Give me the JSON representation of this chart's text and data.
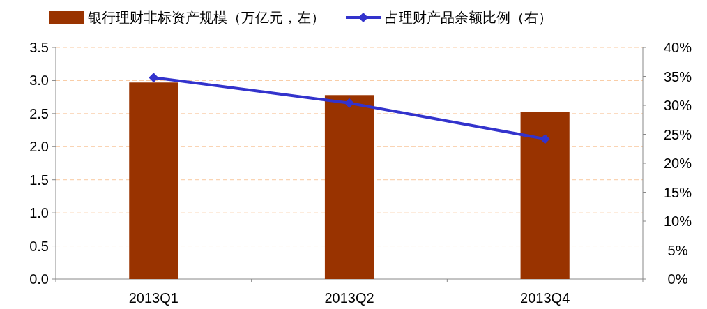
{
  "chart_data": {
    "type": "bar",
    "categories": [
      "2013Q1",
      "2013Q2",
      "2013Q4"
    ],
    "series": [
      {
        "name": "银行理财非标资产规模（万亿元，左）",
        "color": "#993300",
        "values": [
          2.97,
          2.78,
          2.53
        ]
      },
      {
        "name": "占理财产品余额比例（右）",
        "type": "line",
        "axis": "y2",
        "color": "#3333cc",
        "marker": "diamond",
        "values": [
          34.8,
          30.4,
          24.2
        ]
      }
    ],
    "ylim": [
      0,
      3.5
    ],
    "yticks": [
      {
        "value": 0,
        "label": "0.0"
      },
      {
        "value": 0.5,
        "label": "0.5"
      },
      {
        "value": 1,
        "label": "1.0"
      },
      {
        "value": 1.5,
        "label": "1.5"
      },
      {
        "value": 2,
        "label": "2.0"
      },
      {
        "value": 2.5,
        "label": "2.5"
      },
      {
        "value": 3,
        "label": "3.0"
      },
      {
        "value": 3.5,
        "label": "3.5"
      }
    ],
    "y2lim": [
      0,
      40
    ],
    "y2ticks": [
      {
        "value": 0,
        "label": "0%"
      },
      {
        "value": 5,
        "label": "5%"
      },
      {
        "value": 10,
        "label": "10%"
      },
      {
        "value": 15,
        "label": "15%"
      },
      {
        "value": 20,
        "label": "20%"
      },
      {
        "value": 25,
        "label": "25%"
      },
      {
        "value": 30,
        "label": "30%"
      },
      {
        "value": 35,
        "label": "35%"
      },
      {
        "value": 40,
        "label": "40%"
      }
    ],
    "grid": "y",
    "legend": "top"
  }
}
